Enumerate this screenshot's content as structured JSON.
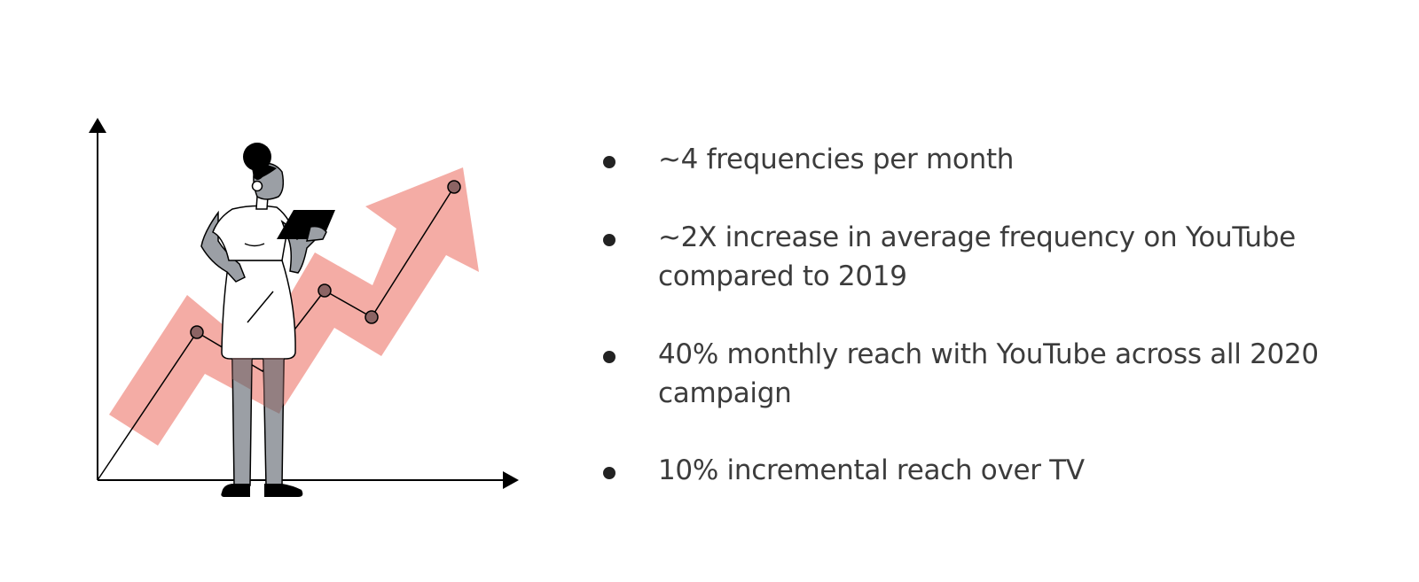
{
  "slide": {
    "bullets": [
      {
        "lines": [
          "~4 frequencies per month"
        ]
      },
      {
        "lines": [
          "~2X increase in average frequency on YouTube",
          "compared to 2019"
        ]
      },
      {
        "lines": [
          "40% monthly reach with YouTube across all 2020",
          "campaign"
        ]
      },
      {
        "lines": [
          "10% incremental reach over TV"
        ]
      }
    ]
  },
  "illustration": {
    "name": "woman-with-tablet-growth-chart",
    "colors": {
      "arrow": "#f4aca5",
      "line": "#000000",
      "dots": "#8c6464",
      "skin_gray": "#9b9fa5",
      "ink": "#000000"
    }
  }
}
